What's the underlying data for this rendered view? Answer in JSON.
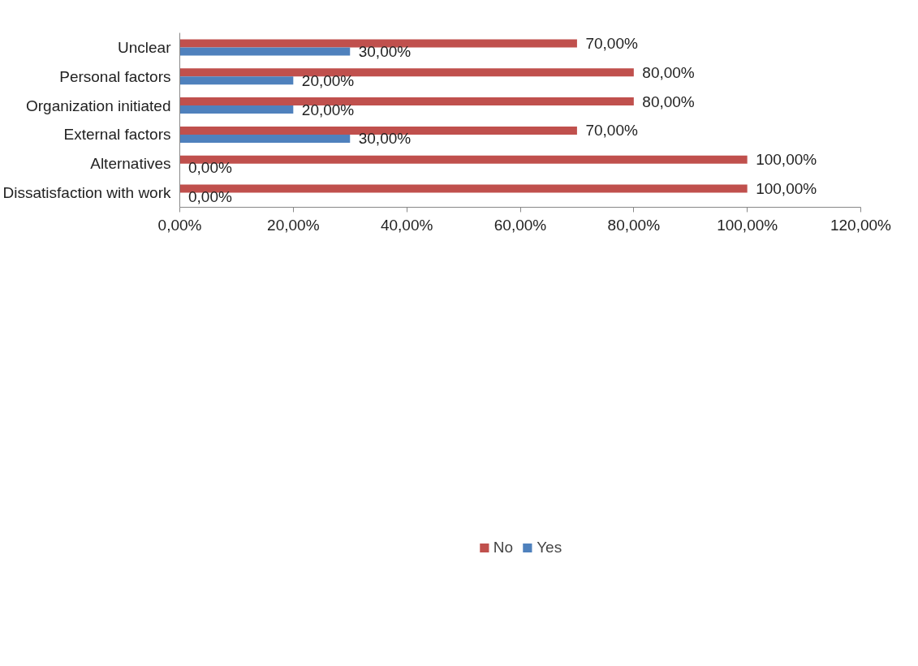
{
  "chart_data": {
    "type": "bar",
    "orientation": "horizontal",
    "categories": [
      "Unclear",
      "Personal factors",
      "Organization initiated",
      "External factors",
      "Alternatives",
      "Dissatisfaction with work"
    ],
    "series": [
      {
        "name": "No",
        "color": "#c0504d",
        "values": [
          70,
          80,
          80,
          70,
          100,
          100
        ],
        "value_labels": [
          "70,00%",
          "80,00%",
          "80,00%",
          "70,00%",
          "100,00%",
          "100,00%"
        ]
      },
      {
        "name": "Yes",
        "color": "#4f81bd",
        "values": [
          30,
          20,
          20,
          30,
          0,
          0
        ],
        "value_labels": [
          "30,00%",
          "20,00%",
          "20,00%",
          "30,00%",
          "0,00%",
          "0,00%"
        ]
      }
    ],
    "xlim": [
      0,
      120
    ],
    "xticks": [
      {
        "value": 0,
        "label": "0,00%"
      },
      {
        "value": 20,
        "label": "20,00%"
      },
      {
        "value": 40,
        "label": "40,00%"
      },
      {
        "value": 60,
        "label": "60,00%"
      },
      {
        "value": 80,
        "label": "80,00%"
      },
      {
        "value": 100,
        "label": "100,00%"
      },
      {
        "value": 120,
        "label": "120,00%"
      }
    ],
    "grid": false,
    "legend": "bottom"
  }
}
